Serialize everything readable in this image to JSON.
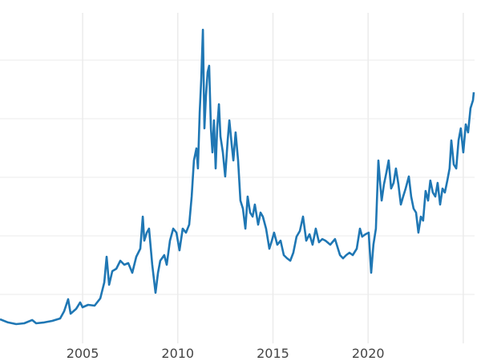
{
  "chart_data": {
    "type": "line",
    "title": "",
    "xlabel": "",
    "ylabel": "",
    "xlim": [
      2000.66,
      2025.93
    ],
    "ylim": [
      1.64,
      58.08
    ],
    "grid": true,
    "legend": "none",
    "x_ticks": [
      2005,
      2010,
      2015,
      2020,
      2025
    ],
    "x_tick_labels": [
      "2005",
      "2010",
      "2015",
      "2020",
      ""
    ],
    "y_gridlines": [
      10,
      20,
      30,
      40,
      50
    ],
    "colors": {
      "line": "#1f77b4",
      "grid": "#ebebeb",
      "tick_text": "#444444"
    },
    "series": [
      {
        "points": [
          [
            2000.66,
            5.75
          ],
          [
            2001.08,
            5.21
          ],
          [
            2001.51,
            4.93
          ],
          [
            2001.93,
            5.07
          ],
          [
            2002.35,
            5.62
          ],
          [
            2002.56,
            5.07
          ],
          [
            2002.98,
            5.21
          ],
          [
            2003.4,
            5.48
          ],
          [
            2003.82,
            5.89
          ],
          [
            2004.03,
            7.12
          ],
          [
            2004.24,
            9.18
          ],
          [
            2004.37,
            6.71
          ],
          [
            2004.66,
            7.53
          ],
          [
            2004.87,
            8.63
          ],
          [
            2005.0,
            7.81
          ],
          [
            2005.29,
            8.22
          ],
          [
            2005.63,
            8.08
          ],
          [
            2005.93,
            9.32
          ],
          [
            2006.14,
            12.05
          ],
          [
            2006.26,
            16.44
          ],
          [
            2006.39,
            11.64
          ],
          [
            2006.56,
            13.97
          ],
          [
            2006.77,
            14.38
          ],
          [
            2006.98,
            15.75
          ],
          [
            2007.19,
            15.07
          ],
          [
            2007.4,
            15.34
          ],
          [
            2007.61,
            13.7
          ],
          [
            2007.82,
            16.44
          ],
          [
            2008.03,
            17.81
          ],
          [
            2008.16,
            23.29
          ],
          [
            2008.24,
            19.18
          ],
          [
            2008.37,
            20.55
          ],
          [
            2008.49,
            21.23
          ],
          [
            2008.66,
            15.07
          ],
          [
            2008.83,
            10.27
          ],
          [
            2008.96,
            13.7
          ],
          [
            2009.08,
            15.75
          ],
          [
            2009.29,
            16.71
          ],
          [
            2009.42,
            15.07
          ],
          [
            2009.59,
            19.18
          ],
          [
            2009.76,
            21.23
          ],
          [
            2009.93,
            20.55
          ],
          [
            2010.09,
            17.53
          ],
          [
            2010.26,
            21.23
          ],
          [
            2010.43,
            20.55
          ],
          [
            2010.6,
            21.92
          ],
          [
            2010.73,
            26.71
          ],
          [
            2010.85,
            32.88
          ],
          [
            2010.98,
            34.93
          ],
          [
            2011.06,
            31.51
          ],
          [
            2011.15,
            41.1
          ],
          [
            2011.23,
            46.58
          ],
          [
            2011.32,
            55.21
          ],
          [
            2011.4,
            38.36
          ],
          [
            2011.48,
            43.84
          ],
          [
            2011.57,
            47.95
          ],
          [
            2011.65,
            49.04
          ],
          [
            2011.74,
            38.36
          ],
          [
            2011.82,
            34.25
          ],
          [
            2011.9,
            39.73
          ],
          [
            2011.99,
            31.51
          ],
          [
            2012.07,
            38.36
          ],
          [
            2012.16,
            42.47
          ],
          [
            2012.24,
            36.99
          ],
          [
            2012.37,
            34.25
          ],
          [
            2012.49,
            30.14
          ],
          [
            2012.62,
            36.3
          ],
          [
            2012.71,
            39.73
          ],
          [
            2012.83,
            35.62
          ],
          [
            2012.92,
            32.88
          ],
          [
            2013.04,
            37.67
          ],
          [
            2013.17,
            32.88
          ],
          [
            2013.29,
            26.03
          ],
          [
            2013.42,
            24.66
          ],
          [
            2013.55,
            21.23
          ],
          [
            2013.67,
            26.71
          ],
          [
            2013.8,
            23.97
          ],
          [
            2013.93,
            23.29
          ],
          [
            2014.05,
            25.34
          ],
          [
            2014.22,
            21.92
          ],
          [
            2014.35,
            23.97
          ],
          [
            2014.47,
            23.29
          ],
          [
            2014.64,
            21.23
          ],
          [
            2014.81,
            17.81
          ],
          [
            2014.94,
            19.18
          ],
          [
            2015.06,
            20.55
          ],
          [
            2015.23,
            18.49
          ],
          [
            2015.4,
            19.18
          ],
          [
            2015.57,
            16.71
          ],
          [
            2015.74,
            16.16
          ],
          [
            2015.91,
            15.75
          ],
          [
            2016.07,
            17.12
          ],
          [
            2016.24,
            19.86
          ],
          [
            2016.41,
            20.82
          ],
          [
            2016.58,
            23.29
          ],
          [
            2016.75,
            19.18
          ],
          [
            2016.92,
            20.27
          ],
          [
            2017.08,
            18.49
          ],
          [
            2017.25,
            21.23
          ],
          [
            2017.42,
            18.9
          ],
          [
            2017.59,
            19.45
          ],
          [
            2017.76,
            19.18
          ],
          [
            2018.01,
            18.49
          ],
          [
            2018.26,
            19.45
          ],
          [
            2018.52,
            16.71
          ],
          [
            2018.68,
            16.16
          ],
          [
            2018.85,
            16.71
          ],
          [
            2019.02,
            17.12
          ],
          [
            2019.19,
            16.71
          ],
          [
            2019.4,
            17.81
          ],
          [
            2019.57,
            21.23
          ],
          [
            2019.69,
            19.86
          ],
          [
            2019.86,
            20.27
          ],
          [
            2020.03,
            20.55
          ],
          [
            2020.16,
            13.7
          ],
          [
            2020.28,
            18.49
          ],
          [
            2020.41,
            21.23
          ],
          [
            2020.54,
            32.88
          ],
          [
            2020.62,
            29.45
          ],
          [
            2020.71,
            26.03
          ],
          [
            2020.83,
            28.77
          ],
          [
            2020.96,
            30.82
          ],
          [
            2021.08,
            32.88
          ],
          [
            2021.21,
            28.08
          ],
          [
            2021.34,
            29.04
          ],
          [
            2021.46,
            31.51
          ],
          [
            2021.59,
            28.77
          ],
          [
            2021.72,
            25.34
          ],
          [
            2021.84,
            26.71
          ],
          [
            2021.97,
            28.08
          ],
          [
            2022.14,
            30.14
          ],
          [
            2022.26,
            26.71
          ],
          [
            2022.39,
            24.66
          ],
          [
            2022.52,
            23.97
          ],
          [
            2022.64,
            20.55
          ],
          [
            2022.77,
            23.29
          ],
          [
            2022.89,
            22.6
          ],
          [
            2023.02,
            27.67
          ],
          [
            2023.15,
            26.03
          ],
          [
            2023.27,
            29.45
          ],
          [
            2023.4,
            27.4
          ],
          [
            2023.53,
            26.71
          ],
          [
            2023.65,
            29.04
          ],
          [
            2023.78,
            25.34
          ],
          [
            2023.91,
            28.08
          ],
          [
            2024.03,
            27.4
          ],
          [
            2024.16,
            29.45
          ],
          [
            2024.28,
            31.51
          ],
          [
            2024.37,
            36.3
          ],
          [
            2024.5,
            32.19
          ],
          [
            2024.63,
            31.51
          ],
          [
            2024.75,
            36.3
          ],
          [
            2024.87,
            38.36
          ],
          [
            2025.0,
            34.25
          ],
          [
            2025.13,
            39.04
          ],
          [
            2025.25,
            37.67
          ],
          [
            2025.38,
            41.78
          ],
          [
            2025.51,
            43.15
          ],
          [
            2025.55,
            44.52
          ]
        ]
      }
    ]
  }
}
